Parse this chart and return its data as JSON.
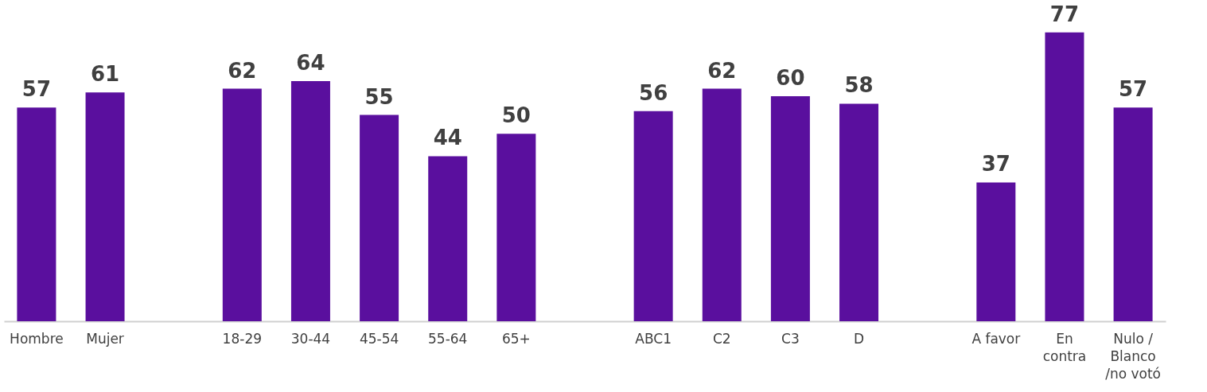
{
  "chart_data": {
    "type": "bar",
    "categories": [
      "Hombre",
      "Mujer",
      null,
      "18-29",
      "30-44",
      "45-54",
      "55-64",
      "65+",
      null,
      "ABC1",
      "C2",
      "C3",
      "D",
      null,
      "A favor",
      "En\ncontra",
      "Nulo /\nBlanco\n/no votó"
    ],
    "values": [
      57,
      61,
      null,
      62,
      64,
      55,
      44,
      50,
      null,
      56,
      62,
      60,
      58,
      null,
      37,
      77,
      57
    ],
    "color": "#5a0f9e",
    "data_labels": true
  }
}
